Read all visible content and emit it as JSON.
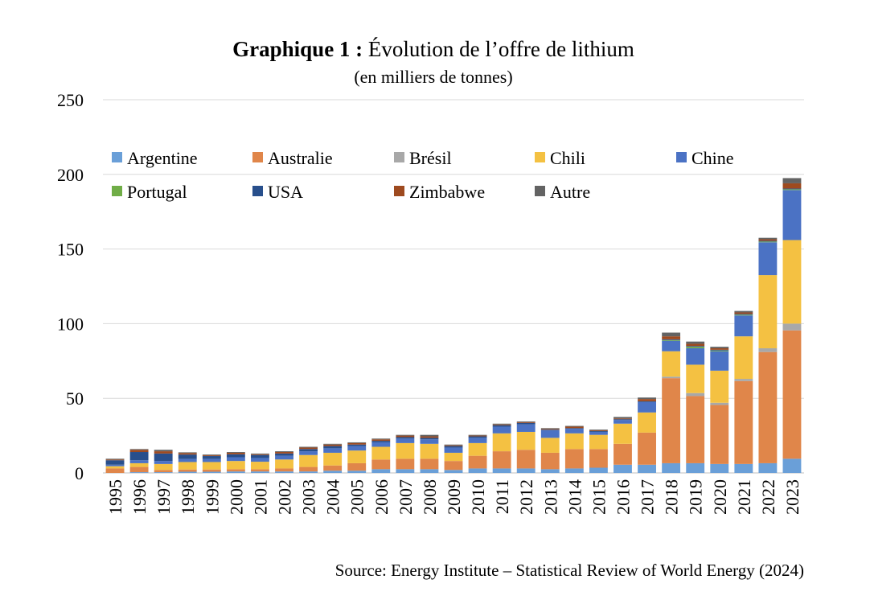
{
  "chart_data": {
    "type": "bar",
    "stacked": true,
    "title_bold": "Graphique 1 :",
    "title_rest": "Évolution de l’offre de lithium",
    "subtitle": "(en milliers de tonnes)",
    "source": "Source: Energy Institute – Statistical Review of World Energy (2024)",
    "ylim": [
      0,
      250
    ],
    "yticks": [
      0,
      50,
      100,
      150,
      200,
      250
    ],
    "yticks_labels": [
      "0",
      "50",
      "100",
      "150",
      "200",
      "250"
    ],
    "grid": true,
    "legend_position": "inside-top-left",
    "categories": [
      "1995",
      "1996",
      "1997",
      "1998",
      "1999",
      "2000",
      "2001",
      "2002",
      "2003",
      "2004",
      "2005",
      "2006",
      "2007",
      "2008",
      "2009",
      "2010",
      "2011",
      "2012",
      "2013",
      "2014",
      "2015",
      "2016",
      "2017",
      "2018",
      "2019",
      "2020",
      "2021",
      "2022",
      "2023"
    ],
    "series": [
      {
        "name": "Argentine",
        "color": "#6a9fd8",
        "values": [
          0,
          0.5,
          0.5,
          0.8,
          0.8,
          1,
          1,
          1,
          1,
          1.5,
          1.5,
          2.5,
          2.5,
          2.5,
          2,
          3,
          3,
          3,
          2.5,
          3,
          3.5,
          5.5,
          5.5,
          6.5,
          6.5,
          6,
          6,
          6.5,
          9.5
        ]
      },
      {
        "name": "Australie",
        "color": "#e0864a",
        "values": [
          3,
          3.5,
          1.5,
          1.5,
          1.5,
          1.5,
          1.5,
          2,
          3,
          3.5,
          5,
          6.5,
          7,
          7,
          6,
          8.5,
          11.5,
          12.5,
          11,
          13,
          12.5,
          14,
          21.5,
          57,
          45,
          39.5,
          55.5,
          74.5,
          86
        ]
      },
      {
        "name": "Brésil",
        "color": "#a8a8a8",
        "values": [
          0,
          0,
          0,
          0,
          0,
          0,
          0,
          0,
          0,
          0,
          0,
          0,
          0,
          0,
          0,
          0,
          0,
          0,
          0,
          0,
          0,
          0,
          0,
          1,
          2,
          1.5,
          1.5,
          2.5,
          4.5
        ]
      },
      {
        "name": "Chili",
        "color": "#f4c142",
        "values": [
          1.5,
          2.5,
          4,
          5,
          5,
          5.5,
          5,
          6,
          8,
          8.5,
          8.5,
          8.5,
          10.5,
          10,
          5.5,
          8.5,
          12,
          12,
          10,
          10.5,
          9.5,
          13.5,
          13.5,
          17,
          19,
          21.5,
          28.5,
          49,
          56
        ]
      },
      {
        "name": "Chine",
        "color": "#4b72c4",
        "values": [
          1,
          2,
          2,
          2,
          2,
          2.5,
          2.5,
          2.5,
          2.5,
          3,
          3,
          3,
          3,
          3,
          3.5,
          3.5,
          4.5,
          5,
          5,
          3,
          2,
          2.5,
          7,
          7,
          11,
          13,
          14,
          22,
          33.5
        ]
      },
      {
        "name": "Portugal",
        "color": "#70ad47",
        "values": [
          0,
          0,
          0,
          0,
          0,
          0,
          0,
          0,
          0,
          0,
          0,
          0,
          0,
          0,
          0,
          0,
          0,
          0,
          0,
          0,
          0,
          0,
          0,
          0.5,
          1,
          0.5,
          0.5,
          0.5,
          0.5
        ]
      },
      {
        "name": "USA",
        "color": "#284f8c",
        "values": [
          3,
          5.5,
          5,
          3,
          2,
          2,
          2,
          1.5,
          1.5,
          1.5,
          1,
          1,
          1,
          1,
          1,
          1,
          1,
          1,
          0.5,
          0.5,
          0.5,
          0.5,
          0.5,
          0.5,
          0.5,
          0.5,
          0.5,
          0.5,
          0.5
        ]
      },
      {
        "name": "Zimbabwe",
        "color": "#9e4a1f",
        "values": [
          0.5,
          1.5,
          1.5,
          1,
          0.5,
          1,
          0.5,
          1,
          1,
          1,
          1,
          1,
          1,
          1,
          0.5,
          0.5,
          0.5,
          0.5,
          0.5,
          1,
          0.5,
          0.5,
          1.5,
          2,
          1.5,
          1,
          1,
          1,
          3.5
        ]
      },
      {
        "name": "Autre",
        "color": "#636363",
        "values": [
          0.5,
          0.5,
          1,
          0.5,
          0.5,
          0.5,
          0.5,
          0.5,
          0.5,
          0.5,
          0.5,
          0.5,
          0.5,
          1,
          0.5,
          0.5,
          0.5,
          0.5,
          0.5,
          0.5,
          0.5,
          1,
          1,
          2.5,
          1.5,
          1,
          1,
          1,
          3.5
        ]
      }
    ]
  }
}
